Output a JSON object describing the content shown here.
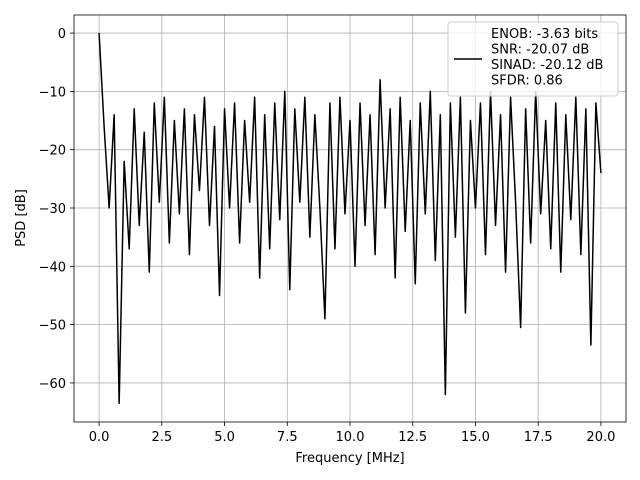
{
  "chart_data": {
    "type": "line",
    "xlabel": "Frequency [MHz]",
    "ylabel": "PSD [dB]",
    "x": [
      0,
      0.2,
      0.4,
      0.6,
      0.8,
      1.0,
      1.2,
      1.4,
      1.6,
      1.8,
      2.0,
      2.2,
      2.4,
      2.6,
      2.8,
      3.0,
      3.2,
      3.4,
      3.6,
      3.8,
      4.0,
      4.2,
      4.4,
      4.6,
      4.8,
      5.0,
      5.2,
      5.4,
      5.6,
      5.8,
      6.0,
      6.2,
      6.4,
      6.6,
      6.8,
      7.0,
      7.2,
      7.4,
      7.6,
      7.8,
      8.0,
      8.2,
      8.4,
      8.6,
      8.8,
      9.0,
      9.2,
      9.4,
      9.6,
      9.8,
      10.0,
      10.2,
      10.4,
      10.6,
      10.8,
      11.0,
      11.2,
      11.4,
      11.6,
      11.8,
      12.0,
      12.2,
      12.4,
      12.6,
      12.8,
      13.0,
      13.2,
      13.4,
      13.6,
      13.8,
      14.0,
      14.2,
      14.4,
      14.6,
      14.8,
      15.0,
      15.2,
      15.4,
      15.6,
      15.8,
      16.0,
      16.2,
      16.4,
      16.6,
      16.8,
      17.0,
      17.2,
      17.4,
      17.6,
      17.8,
      18.0,
      18.2,
      18.4,
      18.6,
      18.8,
      19.0,
      19.2,
      19.4,
      19.6,
      19.8,
      20.0
    ],
    "series": [
      {
        "name": "ENOB: -3.63 bits\nSNR: -20.07 dB\nSINAD: -20.12 dB\nSFDR: 0.86",
        "color": "#000000",
        "values": [
          0,
          -16,
          -30,
          -14,
          -63.5,
          -22,
          -37,
          -13,
          -33,
          -17,
          -41,
          -12,
          -29,
          -11,
          -36,
          -15,
          -31,
          -13,
          -38,
          -14,
          -27,
          -11,
          -33,
          -16,
          -45,
          -13,
          -30,
          -12,
          -36,
          -15,
          -29,
          -11,
          -42,
          -14,
          -37,
          -12,
          -32,
          -10,
          -44,
          -13,
          -29,
          -11,
          -35,
          -14,
          -30,
          -49,
          -12,
          -37,
          -11,
          -31,
          -15,
          -40,
          -12,
          -33,
          -14,
          -38,
          -8,
          -30,
          -13,
          -42,
          -11,
          -34,
          -15,
          -43,
          -12,
          -31,
          -10,
          -39,
          -14,
          -62,
          -12,
          -35,
          -11,
          -48,
          -15,
          -30,
          -12,
          -38,
          -10,
          -33,
          -14,
          -41,
          -11,
          -29,
          -50.5,
          -13,
          -36,
          -10,
          -31,
          -15,
          -37,
          -12,
          -41,
          -14,
          -32,
          -11,
          -38,
          -13,
          -53.5,
          -12,
          -24
        ]
      }
    ],
    "xlim": [
      -1,
      21
    ],
    "ylim": [
      -66.7,
      3.1
    ],
    "xticks": [
      {
        "value": 0,
        "label": "0.0"
      },
      2.5,
      {
        "value": 5,
        "label": "5.0"
      },
      7.5,
      {
        "value": 10,
        "label": "10.0"
      },
      12.5,
      {
        "value": 15,
        "label": "15.0"
      },
      17.5,
      {
        "value": 20,
        "label": "20.0"
      }
    ],
    "yticks": [
      0,
      {
        "value": -10,
        "label": "−10"
      },
      {
        "value": -20,
        "label": "−20"
      },
      {
        "value": -30,
        "label": "−30"
      },
      {
        "value": -40,
        "label": "−40"
      },
      {
        "value": -50,
        "label": "−50"
      },
      {
        "value": -60,
        "label": "−60"
      }
    ],
    "grid": true,
    "legend": "upper right"
  }
}
